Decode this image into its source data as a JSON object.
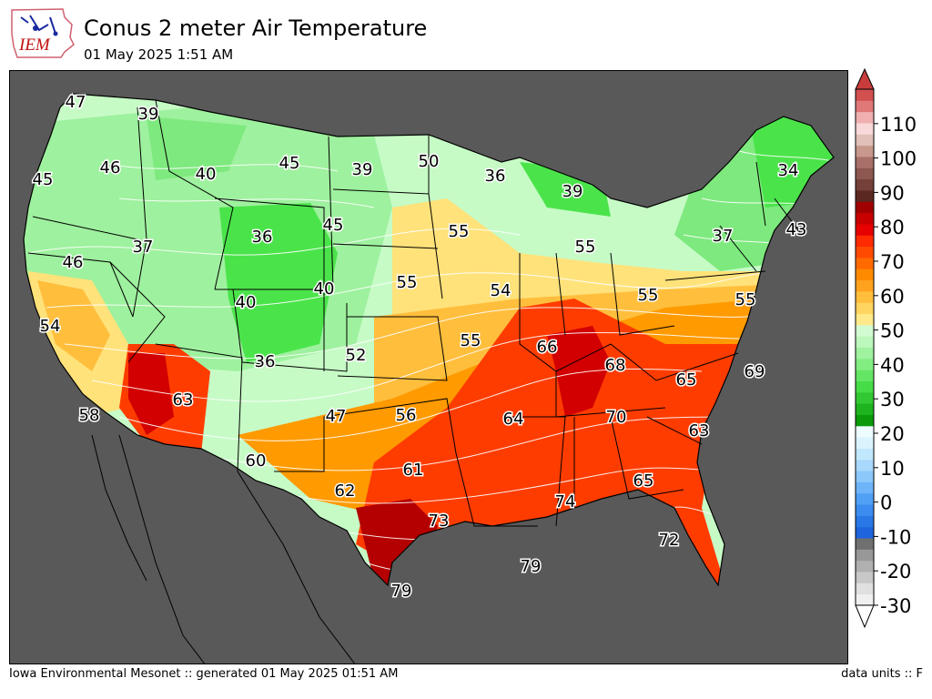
{
  "header": {
    "logo_text": "IEM",
    "title": "Conus 2 meter Air Temperature",
    "subtitle": "01 May 2025 1:51 AM"
  },
  "colors": {
    "ocean": "#595959",
    "cold_green": "#4ae44a",
    "green": "#9ef19e",
    "light_green": "#c6fbc6",
    "yellow": "#ffe27a",
    "gold": "#ffbe3c",
    "orange": "#ff9a00",
    "red_orange": "#ff3c00",
    "red": "#d20000",
    "dark_red": "#b40000"
  },
  "colorbar": {
    "tick_labels": [
      "110",
      "100",
      "90",
      "80",
      "70",
      "60",
      "50",
      "40",
      "30",
      "20",
      "10",
      "0",
      "-10",
      "-20",
      "-30"
    ],
    "units": "F",
    "range": [
      -30,
      120
    ]
  },
  "map": {
    "region": "CONUS",
    "values": [
      {
        "label": "47"
      },
      {
        "label": "39"
      },
      {
        "label": "45"
      },
      {
        "label": "46"
      },
      {
        "label": "40"
      },
      {
        "label": "45"
      },
      {
        "label": "39"
      },
      {
        "label": "50"
      },
      {
        "label": "36"
      },
      {
        "label": "39"
      },
      {
        "label": "34"
      },
      {
        "label": "36"
      },
      {
        "label": "45"
      },
      {
        "label": "55"
      },
      {
        "label": "55"
      },
      {
        "label": "37"
      },
      {
        "label": "43"
      },
      {
        "label": "46"
      },
      {
        "label": "37"
      },
      {
        "label": "55"
      },
      {
        "label": "54"
      },
      {
        "label": "55"
      },
      {
        "label": "55"
      },
      {
        "label": "40"
      },
      {
        "label": "40"
      },
      {
        "label": "54"
      },
      {
        "label": "52"
      },
      {
        "label": "55"
      },
      {
        "label": "66"
      },
      {
        "label": "36"
      },
      {
        "label": "68"
      },
      {
        "label": "65"
      },
      {
        "label": "69"
      },
      {
        "label": "63"
      },
      {
        "label": "58"
      },
      {
        "label": "47"
      },
      {
        "label": "56"
      },
      {
        "label": "64"
      },
      {
        "label": "70"
      },
      {
        "label": "63"
      },
      {
        "label": "60"
      },
      {
        "label": "61"
      },
      {
        "label": "65"
      },
      {
        "label": "62"
      },
      {
        "label": "74"
      },
      {
        "label": "73"
      },
      {
        "label": "72"
      },
      {
        "label": "79"
      },
      {
        "label": "79"
      }
    ]
  },
  "footer": {
    "left": "Iowa Environmental Mesonet :: generated 01 May 2025 01:51 AM",
    "right": "data units :: F"
  }
}
